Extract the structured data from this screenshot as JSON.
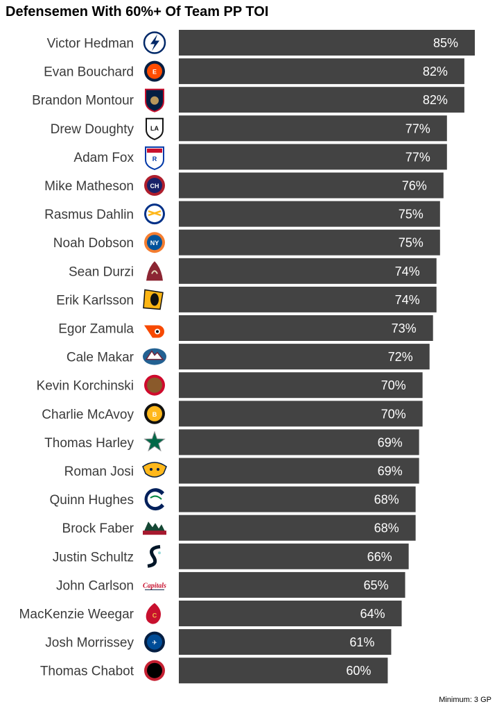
{
  "chart_data": {
    "type": "bar",
    "orientation": "horizontal",
    "title": "Defensemen With 60%+ Of Team PP TOI",
    "footnote": "Minimum: 3 GP",
    "bar_color": "#434343",
    "label_color": "#ffffff",
    "value_format": "percent",
    "categories": [
      "Victor Hedman",
      "Evan Bouchard",
      "Brandon Montour",
      "Drew Doughty",
      "Adam Fox",
      "Mike Matheson",
      "Rasmus Dahlin",
      "Noah Dobson",
      "Sean Durzi",
      "Erik Karlsson",
      "Egor Zamula",
      "Cale Makar",
      "Kevin Korchinski",
      "Charlie McAvoy",
      "Thomas Harley",
      "Roman Josi",
      "Quinn Hughes",
      "Brock Faber",
      "Justin Schultz",
      "John Carlson",
      "MacKenzie Weegar",
      "Josh Morrissey",
      "Thomas Chabot"
    ],
    "values": [
      85,
      82,
      82,
      77,
      77,
      76,
      75,
      75,
      74,
      74,
      73,
      72,
      70,
      70,
      69,
      69,
      68,
      68,
      66,
      65,
      64,
      61,
      60
    ],
    "team_logos": [
      {
        "icon": "lightning-logo-icon",
        "color": "#002868"
      },
      {
        "icon": "oilers-logo-icon",
        "color": "#041E42"
      },
      {
        "icon": "panthers-logo-icon",
        "color": "#C8102E"
      },
      {
        "icon": "kings-logo-icon",
        "color": "#111111"
      },
      {
        "icon": "rangers-logo-icon",
        "color": "#0038A8"
      },
      {
        "icon": "canadiens-logo-icon",
        "color": "#AF1E2D"
      },
      {
        "icon": "sabres-logo-icon",
        "color": "#003087"
      },
      {
        "icon": "islanders-logo-icon",
        "color": "#00539B"
      },
      {
        "icon": "coyotes-logo-icon",
        "color": "#8C2633"
      },
      {
        "icon": "penguins-logo-icon",
        "color": "#111111"
      },
      {
        "icon": "flyers-logo-icon",
        "color": "#F74902"
      },
      {
        "icon": "avalanche-logo-icon",
        "color": "#6F263D"
      },
      {
        "icon": "blackhawks-logo-icon",
        "color": "#CF0A2C"
      },
      {
        "icon": "bruins-logo-icon",
        "color": "#FFB81C"
      },
      {
        "icon": "stars-logo-icon",
        "color": "#006847"
      },
      {
        "icon": "predators-logo-icon",
        "color": "#FFB81C"
      },
      {
        "icon": "canucks-logo-icon",
        "color": "#00205B"
      },
      {
        "icon": "wild-logo-icon",
        "color": "#154734"
      },
      {
        "icon": "kraken-logo-icon",
        "color": "#001628"
      },
      {
        "icon": "capitals-logo-icon",
        "color": "#C8102E"
      },
      {
        "icon": "flames-logo-icon",
        "color": "#C8102E"
      },
      {
        "icon": "jets-logo-icon",
        "color": "#041E42"
      },
      {
        "icon": "senators-logo-icon",
        "color": "#C52032"
      }
    ]
  }
}
